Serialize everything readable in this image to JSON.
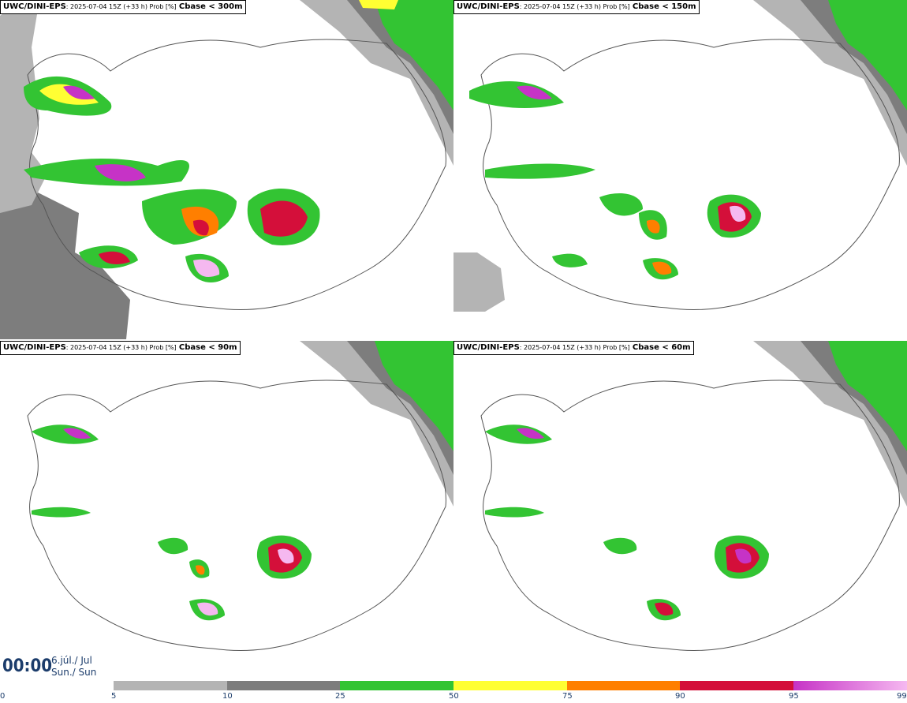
{
  "panels": [
    {
      "source": "UWC/DINI-EPS",
      "meta": ": 2025-07-04 15Z (+33 h) Prob [%]",
      "variable": "Cbase < 300m"
    },
    {
      "source": "UWC/DINI-EPS",
      "meta": ": 2025-07-04 15Z (+33 h) Prob [%]",
      "variable": "Cbase < 150m"
    },
    {
      "source": "UWC/DINI-EPS",
      "meta": ": 2025-07-04 15Z (+33 h) Prob [%]",
      "variable": "Cbase < 90m"
    },
    {
      "source": "UWC/DINI-EPS",
      "meta": ": 2025-07-04 15Z (+33 h) Prob [%]",
      "variable": "Cbase < 60m"
    }
  ],
  "valid_time": {
    "time": "00:00",
    "date_line1": "6.júl./ Jul",
    "date_line2": "Sun./ Sun"
  },
  "legend": {
    "ticks": [
      "0",
      "5",
      "10",
      "25",
      "50",
      "75",
      "90",
      "95",
      "99"
    ],
    "colors": [
      "#ffffff",
      "#b4b4b4",
      "#7d7d7d",
      "#33c433",
      "#ffff33",
      "#ff7f00",
      "#d40f3a",
      "#c633c6",
      "#f5b8f0"
    ]
  }
}
